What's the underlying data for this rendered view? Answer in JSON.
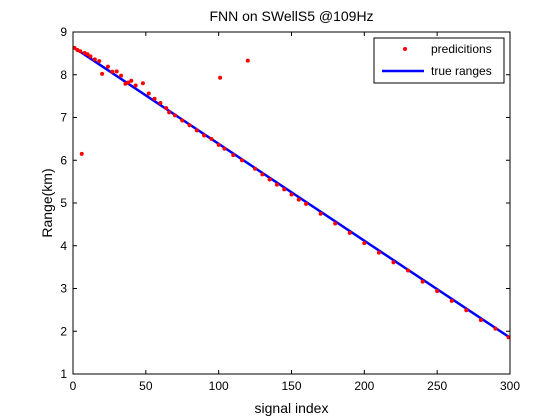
{
  "chart_data": {
    "type": "scatter",
    "title": "FNN on SWellS5 @109Hz",
    "xlabel": "signal index",
    "ylabel": "Range(km)",
    "xlim": [
      0,
      300
    ],
    "ylim": [
      1,
      9
    ],
    "x_ticks": [
      0,
      50,
      100,
      150,
      200,
      250,
      300
    ],
    "y_ticks": [
      1,
      2,
      3,
      4,
      5,
      6,
      7,
      8,
      9
    ],
    "grid": false,
    "legend_position": "top-right",
    "legend": [
      "predicitions",
      "true ranges"
    ],
    "series": [
      {
        "name": "predicitions",
        "kind": "scatter",
        "marker": "dot",
        "color": "#ff0000",
        "points": [
          [
            1,
            8.63
          ],
          [
            3,
            8.58
          ],
          [
            5,
            8.55
          ],
          [
            6,
            6.15
          ],
          [
            8,
            8.51
          ],
          [
            10,
            8.48
          ],
          [
            12,
            8.43
          ],
          [
            15,
            8.36
          ],
          [
            18,
            8.32
          ],
          [
            20,
            8.02
          ],
          [
            24,
            8.19
          ],
          [
            27,
            8.07
          ],
          [
            30,
            8.08
          ],
          [
            33,
            7.98
          ],
          [
            36,
            7.79
          ],
          [
            38,
            7.82
          ],
          [
            40,
            7.86
          ],
          [
            43,
            7.75
          ],
          [
            48,
            7.8
          ],
          [
            52,
            7.56
          ],
          [
            56,
            7.44
          ],
          [
            60,
            7.34
          ],
          [
            64,
            7.22
          ],
          [
            66,
            7.12
          ],
          [
            70,
            7.05
          ],
          [
            75,
            6.93
          ],
          [
            80,
            6.82
          ],
          [
            85,
            6.7
          ],
          [
            90,
            6.58
          ],
          [
            95,
            6.5
          ],
          [
            100,
            6.36
          ],
          [
            101,
            7.93
          ],
          [
            104,
            6.27
          ],
          [
            110,
            6.12
          ],
          [
            116,
            6.0
          ],
          [
            120,
            8.33
          ],
          [
            125,
            5.8
          ],
          [
            130,
            5.67
          ],
          [
            135,
            5.55
          ],
          [
            140,
            5.43
          ],
          [
            145,
            5.32
          ],
          [
            150,
            5.2
          ],
          [
            155,
            5.08
          ],
          [
            160,
            4.98
          ],
          [
            170,
            4.75
          ],
          [
            180,
            4.52
          ],
          [
            190,
            4.3
          ],
          [
            200,
            4.06
          ],
          [
            210,
            3.84
          ],
          [
            220,
            3.61
          ],
          [
            230,
            3.42
          ],
          [
            240,
            3.16
          ],
          [
            250,
            2.94
          ],
          [
            260,
            2.71
          ],
          [
            270,
            2.49
          ],
          [
            280,
            2.26
          ],
          [
            290,
            2.06
          ],
          [
            299,
            1.86
          ]
        ]
      },
      {
        "name": "true ranges",
        "kind": "line",
        "color": "#0000ff",
        "x": [
          0,
          300
        ],
        "y": [
          8.65,
          1.85
        ]
      }
    ]
  }
}
